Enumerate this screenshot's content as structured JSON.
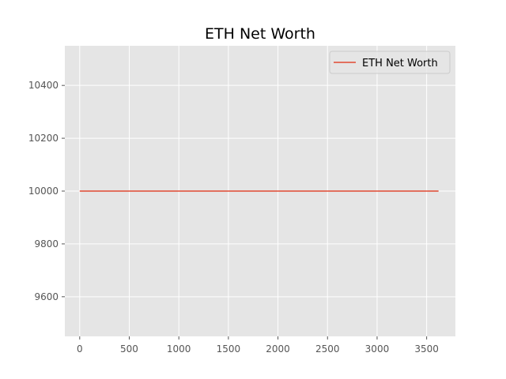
{
  "chart_data": {
    "type": "line",
    "title": "ETH Net Worth",
    "xlabel": "",
    "ylabel": "",
    "xlim": [
      -150,
      3790
    ],
    "ylim": [
      9450,
      10550
    ],
    "x_ticks": [
      0,
      500,
      1000,
      1500,
      2000,
      2500,
      3000,
      3500
    ],
    "y_ticks": [
      9600,
      9800,
      10000,
      10200,
      10400
    ],
    "grid": true,
    "legend_position": "top-right",
    "series": [
      {
        "name": "ETH Net Worth",
        "color": "#E24A33",
        "x": [
          0,
          3620
        ],
        "y": [
          10000,
          10000
        ]
      }
    ]
  },
  "style": {
    "plot_background": "#E5E5E5",
    "grid_color": "#FFFFFF",
    "tick_color": "#555555"
  }
}
